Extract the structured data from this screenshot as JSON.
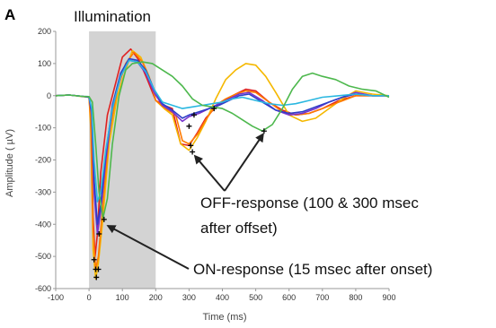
{
  "chart_data": {
    "type": "line",
    "panel_label": "A",
    "shaded_region": {
      "label": "Illumination",
      "x_start": 0,
      "x_end": 200,
      "color": "#d3d3d3"
    },
    "xlabel": "Time (ms)",
    "ylabel": "Amplitude ( µV)",
    "xlim": [
      -100,
      900
    ],
    "ylim": [
      -600,
      200
    ],
    "xticks": [
      -100,
      0,
      100,
      200,
      300,
      400,
      500,
      600,
      700,
      800,
      900
    ],
    "yticks": [
      200,
      100,
      0,
      -100,
      -200,
      -300,
      -400,
      -500,
      -600
    ],
    "series": [
      {
        "color": "#e02020",
        "points": [
          [
            -100,
            0
          ],
          [
            -60,
            2
          ],
          [
            -20,
            -2
          ],
          [
            0,
            -5
          ],
          [
            5,
            -60
          ],
          [
            12,
            -380
          ],
          [
            18,
            -500
          ],
          [
            25,
            -430
          ],
          [
            35,
            -240
          ],
          [
            55,
            -60
          ],
          [
            80,
            40
          ],
          [
            100,
            120
          ],
          [
            125,
            145
          ],
          [
            150,
            110
          ],
          [
            175,
            50
          ],
          [
            200,
            -15
          ],
          [
            225,
            -30
          ],
          [
            250,
            -40
          ],
          [
            275,
            -150
          ],
          [
            300,
            -155
          ],
          [
            325,
            -115
          ],
          [
            350,
            -70
          ],
          [
            380,
            -35
          ],
          [
            410,
            -15
          ],
          [
            440,
            5
          ],
          [
            470,
            20
          ],
          [
            500,
            15
          ],
          [
            540,
            -20
          ],
          [
            580,
            -45
          ],
          [
            620,
            -60
          ],
          [
            660,
            -55
          ],
          [
            700,
            -40
          ],
          [
            750,
            -15
          ],
          [
            800,
            0
          ],
          [
            850,
            0
          ],
          [
            900,
            0
          ]
        ]
      },
      {
        "color": "#f5b800",
        "points": [
          [
            -100,
            0
          ],
          [
            -60,
            2
          ],
          [
            -20,
            -3
          ],
          [
            0,
            -5
          ],
          [
            5,
            -100
          ],
          [
            12,
            -480
          ],
          [
            20,
            -570
          ],
          [
            28,
            -520
          ],
          [
            40,
            -400
          ],
          [
            60,
            -150
          ],
          [
            85,
            0
          ],
          [
            110,
            80
          ],
          [
            130,
            140
          ],
          [
            155,
            120
          ],
          [
            180,
            60
          ],
          [
            200,
            -15
          ],
          [
            225,
            -40
          ],
          [
            250,
            -60
          ],
          [
            275,
            -150
          ],
          [
            300,
            -170
          ],
          [
            325,
            -130
          ],
          [
            350,
            -80
          ],
          [
            380,
            -10
          ],
          [
            410,
            50
          ],
          [
            440,
            80
          ],
          [
            470,
            100
          ],
          [
            500,
            95
          ],
          [
            530,
            60
          ],
          [
            560,
            10
          ],
          [
            600,
            -60
          ],
          [
            640,
            -80
          ],
          [
            680,
            -70
          ],
          [
            720,
            -40
          ],
          [
            760,
            -10
          ],
          [
            800,
            15
          ],
          [
            850,
            5
          ],
          [
            900,
            0
          ]
        ]
      },
      {
        "color": "#ff7a00",
        "points": [
          [
            -100,
            0
          ],
          [
            -60,
            2
          ],
          [
            -20,
            -2
          ],
          [
            0,
            -5
          ],
          [
            5,
            -80
          ],
          [
            12,
            -420
          ],
          [
            20,
            -540
          ],
          [
            28,
            -500
          ],
          [
            40,
            -360
          ],
          [
            60,
            -120
          ],
          [
            85,
            20
          ],
          [
            110,
            100
          ],
          [
            135,
            135
          ],
          [
            160,
            105
          ],
          [
            185,
            45
          ],
          [
            200,
            -15
          ],
          [
            230,
            -40
          ],
          [
            260,
            -60
          ],
          [
            280,
            -140
          ],
          [
            300,
            -150
          ],
          [
            325,
            -120
          ],
          [
            350,
            -75
          ],
          [
            380,
            -30
          ],
          [
            410,
            -10
          ],
          [
            440,
            5
          ],
          [
            470,
            15
          ],
          [
            500,
            10
          ],
          [
            540,
            -20
          ],
          [
            580,
            -50
          ],
          [
            620,
            -60
          ],
          [
            660,
            -55
          ],
          [
            700,
            -40
          ],
          [
            750,
            -20
          ],
          [
            800,
            0
          ],
          [
            850,
            0
          ],
          [
            900,
            0
          ]
        ]
      },
      {
        "color": "#7733cc",
        "points": [
          [
            -100,
            0
          ],
          [
            -60,
            2
          ],
          [
            -20,
            -2
          ],
          [
            0,
            -5
          ],
          [
            8,
            -60
          ],
          [
            15,
            -300
          ],
          [
            25,
            -430
          ],
          [
            35,
            -360
          ],
          [
            50,
            -200
          ],
          [
            70,
            -40
          ],
          [
            95,
            60
          ],
          [
            120,
            110
          ],
          [
            145,
            105
          ],
          [
            170,
            70
          ],
          [
            195,
            10
          ],
          [
            220,
            -30
          ],
          [
            250,
            -50
          ],
          [
            280,
            -80
          ],
          [
            300,
            -65
          ],
          [
            330,
            -55
          ],
          [
            360,
            -40
          ],
          [
            390,
            -25
          ],
          [
            420,
            -10
          ],
          [
            450,
            5
          ],
          [
            480,
            10
          ],
          [
            520,
            -15
          ],
          [
            560,
            -45
          ],
          [
            600,
            -60
          ],
          [
            640,
            -55
          ],
          [
            680,
            -40
          ],
          [
            720,
            -20
          ],
          [
            760,
            -5
          ],
          [
            800,
            10
          ],
          [
            850,
            0
          ],
          [
            900,
            0
          ]
        ]
      },
      {
        "color": "#2d3ec8",
        "points": [
          [
            -100,
            0
          ],
          [
            -60,
            2
          ],
          [
            -20,
            -2
          ],
          [
            0,
            -5
          ],
          [
            8,
            -50
          ],
          [
            15,
            -260
          ],
          [
            25,
            -400
          ],
          [
            35,
            -340
          ],
          [
            50,
            -180
          ],
          [
            70,
            -30
          ],
          [
            95,
            70
          ],
          [
            120,
            115
          ],
          [
            145,
            110
          ],
          [
            170,
            80
          ],
          [
            195,
            20
          ],
          [
            220,
            -25
          ],
          [
            250,
            -45
          ],
          [
            280,
            -70
          ],
          [
            300,
            -60
          ],
          [
            330,
            -50
          ],
          [
            360,
            -40
          ],
          [
            390,
            -30
          ],
          [
            420,
            -15
          ],
          [
            450,
            0
          ],
          [
            480,
            5
          ],
          [
            520,
            -20
          ],
          [
            560,
            -45
          ],
          [
            600,
            -55
          ],
          [
            640,
            -50
          ],
          [
            680,
            -35
          ],
          [
            720,
            -20
          ],
          [
            760,
            -5
          ],
          [
            800,
            5
          ],
          [
            850,
            0
          ],
          [
            900,
            0
          ]
        ]
      },
      {
        "color": "#2ab7e0",
        "points": [
          [
            -100,
            0
          ],
          [
            -60,
            2
          ],
          [
            -20,
            -2
          ],
          [
            0,
            -3
          ],
          [
            8,
            -40
          ],
          [
            15,
            -200
          ],
          [
            25,
            -330
          ],
          [
            35,
            -300
          ],
          [
            50,
            -170
          ],
          [
            70,
            -40
          ],
          [
            95,
            60
          ],
          [
            120,
            110
          ],
          [
            145,
            105
          ],
          [
            170,
            75
          ],
          [
            195,
            20
          ],
          [
            220,
            -20
          ],
          [
            250,
            -30
          ],
          [
            280,
            -40
          ],
          [
            310,
            -35
          ],
          [
            340,
            -30
          ],
          [
            370,
            -25
          ],
          [
            400,
            -20
          ],
          [
            430,
            -10
          ],
          [
            460,
            -5
          ],
          [
            500,
            -15
          ],
          [
            540,
            -25
          ],
          [
            580,
            -30
          ],
          [
            620,
            -25
          ],
          [
            660,
            -15
          ],
          [
            700,
            -5
          ],
          [
            750,
            0
          ],
          [
            800,
            5
          ],
          [
            850,
            0
          ],
          [
            900,
            0
          ]
        ]
      },
      {
        "color": "#4db84d",
        "points": [
          [
            -100,
            0
          ],
          [
            -60,
            2
          ],
          [
            -20,
            -2
          ],
          [
            0,
            -3
          ],
          [
            10,
            -20
          ],
          [
            20,
            -150
          ],
          [
            30,
            -300
          ],
          [
            42,
            -380
          ],
          [
            55,
            -320
          ],
          [
            70,
            -150
          ],
          [
            90,
            0
          ],
          [
            110,
            80
          ],
          [
            130,
            100
          ],
          [
            160,
            105
          ],
          [
            190,
            100
          ],
          [
            220,
            80
          ],
          [
            250,
            60
          ],
          [
            280,
            30
          ],
          [
            310,
            -10
          ],
          [
            340,
            -30
          ],
          [
            370,
            -35
          ],
          [
            400,
            -40
          ],
          [
            430,
            -55
          ],
          [
            460,
            -75
          ],
          [
            490,
            -95
          ],
          [
            520,
            -110
          ],
          [
            550,
            -90
          ],
          [
            580,
            -40
          ],
          [
            610,
            20
          ],
          [
            640,
            60
          ],
          [
            670,
            70
          ],
          [
            700,
            60
          ],
          [
            740,
            50
          ],
          [
            780,
            30
          ],
          [
            820,
            20
          ],
          [
            860,
            15
          ],
          [
            900,
            -5
          ]
        ]
      }
    ],
    "markers": [
      [
        15,
        -510
      ],
      [
        20,
        -540
      ],
      [
        22,
        -565
      ],
      [
        28,
        -540
      ],
      [
        30,
        -430
      ],
      [
        45,
        -385
      ],
      [
        300,
        -95
      ],
      [
        305,
        -155
      ],
      [
        310,
        -175
      ],
      [
        315,
        -60
      ],
      [
        375,
        -40
      ],
      [
        525,
        -110
      ]
    ],
    "annotations": [
      {
        "text": "OFF-response (100 & 300 msec",
        "text2": "after offset)",
        "arrow_targets": [
          [
            310,
            -180
          ],
          [
            530,
            -110
          ]
        ]
      },
      {
        "text": "ON-response (15 msec after onset)",
        "arrow_targets": [
          [
            45,
            -400
          ]
        ]
      }
    ]
  }
}
